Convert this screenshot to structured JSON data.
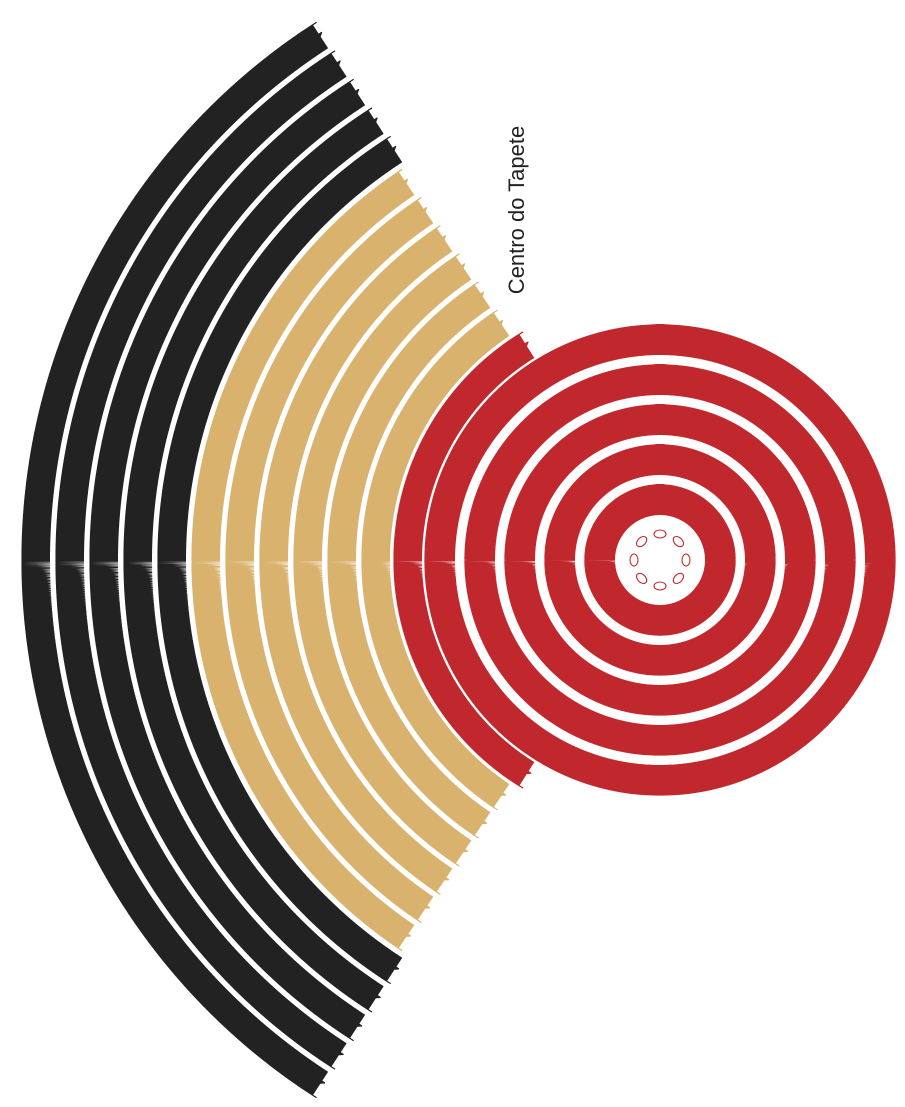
{
  "title": "Centro do Tapete"
}
